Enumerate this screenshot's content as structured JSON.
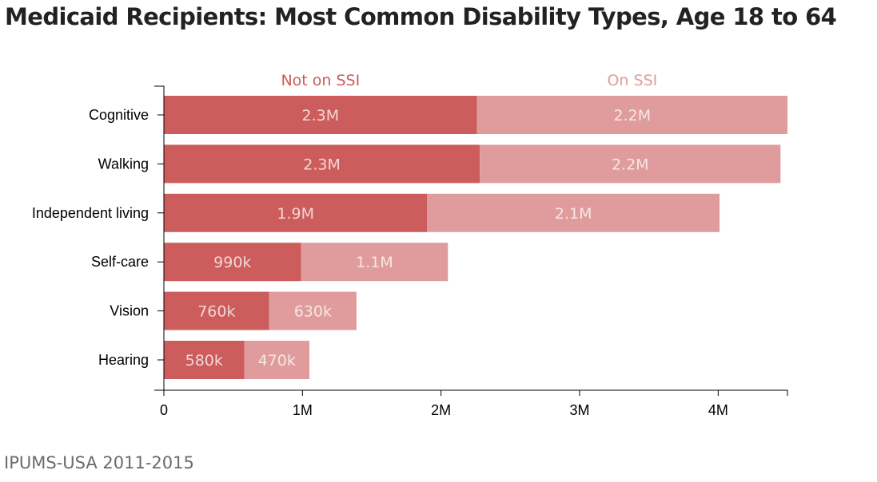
{
  "title": "Medicaid Recipients: Most Common Disability Types, Age 18 to 64",
  "source": "IPUMS-USA 2011-2015",
  "chart_data": {
    "type": "bar",
    "orientation": "horizontal",
    "stacked": true,
    "categories": [
      "Cognitive",
      "Walking",
      "Independent living",
      "Self-care",
      "Vision",
      "Hearing"
    ],
    "series": [
      {
        "name": "Not on SSI",
        "color": "#cd5c5c",
        "values": [
          2260000,
          2280000,
          1900000,
          990000,
          760000,
          580000
        ],
        "labels": [
          "2.3M",
          "2.3M",
          "1.9M",
          "990k",
          "760k",
          "580k"
        ]
      },
      {
        "name": "On SSI",
        "color": "#e09c9c",
        "values": [
          2240000,
          2170000,
          2110000,
          1060000,
          630000,
          470000
        ],
        "labels": [
          "2.2M",
          "2.2M",
          "2.1M",
          "1.1M",
          "630k",
          "470k"
        ]
      }
    ],
    "xlim": [
      0,
      4500000
    ],
    "x_ticks": [
      0,
      1000000,
      2000000,
      3000000,
      4000000
    ],
    "x_tick_labels": [
      "0",
      "1M",
      "2M",
      "3M",
      "4M"
    ],
    "legend_placement": "top",
    "grid": false
  }
}
